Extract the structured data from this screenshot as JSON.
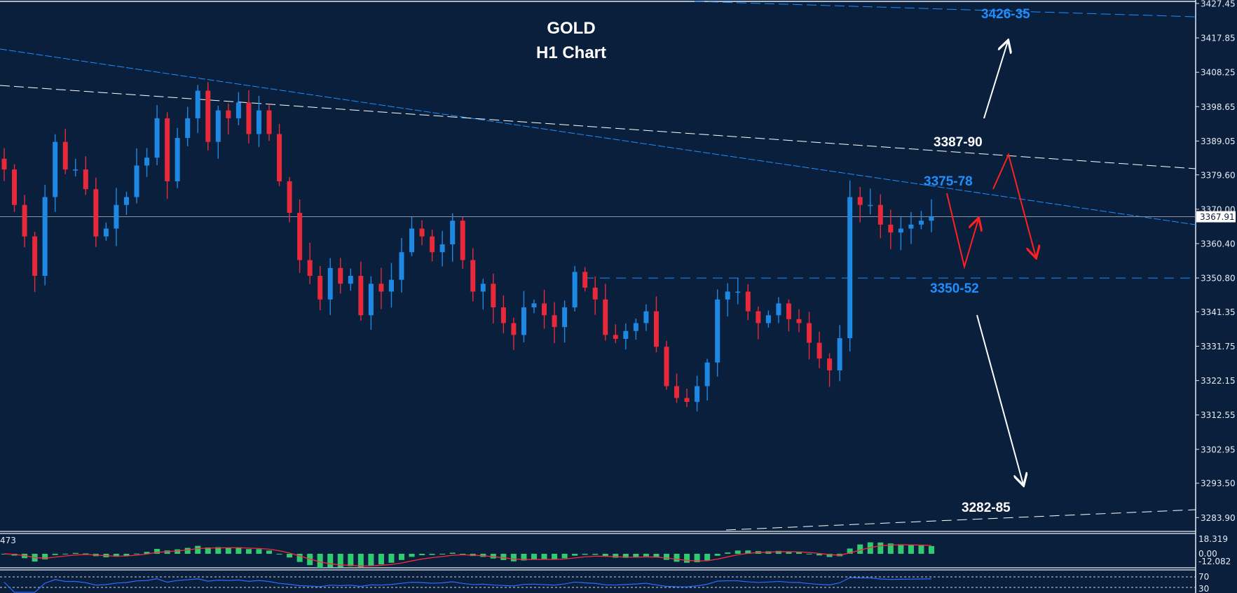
{
  "chart_data": {
    "type": "candlestick",
    "title": "GOLD",
    "subtitle": "H1 Chart",
    "ylim": [
      3281.5,
      3428.4
    ],
    "y_ticks": [
      "3427.45",
      "3417.85",
      "3408.25",
      "3398.65",
      "3389.05",
      "3379.60",
      "3370.00",
      "3360.40",
      "3350.80",
      "3341.35",
      "3331.75",
      "3322.15",
      "3312.55",
      "3302.95",
      "3293.50",
      "3283.90"
    ],
    "current_price": "3367.91",
    "closes": [
      3381.1,
      3371.2,
      3362.4,
      3351.4,
      3373.4,
      3388.8,
      3381.1,
      3381.1,
      3375.6,
      3362.4,
      3364.6,
      3371.2,
      3373.4,
      3382.2,
      3384.4,
      3395.4,
      3377.8,
      3389.9,
      3395.4,
      3403.1,
      3388.8,
      3397.6,
      3395.4,
      3399.8,
      3391.0,
      3397.6,
      3391.0,
      3377.8,
      3369.0,
      3355.8,
      3351.4,
      3344.8,
      3353.6,
      3349.2,
      3351.4,
      3340.4,
      3349.2,
      3347.0,
      3350.3,
      3358.0,
      3364.6,
      3362.4,
      3358.0,
      3360.2,
      3366.8,
      3355.8,
      3347.0,
      3349.2,
      3342.6,
      3338.2,
      3334.9,
      3342.6,
      3343.7,
      3340.4,
      3337.1,
      3342.6,
      3352.5,
      3348.1,
      3344.8,
      3334.9,
      3333.8,
      3336.0,
      3338.2,
      3341.5,
      3331.6,
      3320.6,
      3317.3,
      3316.2,
      3320.6,
      3327.2,
      3344.8,
      3347.0,
      3347.0,
      3341.5,
      3338.2,
      3340.4,
      3343.7,
      3339.3,
      3338.2,
      3332.7,
      3328.3,
      3325.0,
      3334.0,
      3373.4,
      3371.2,
      3371.2,
      3365.7,
      3363.5,
      3364.6,
      3365.7,
      3366.8,
      3367.9
    ],
    "levels": [
      {
        "label": "3426-35",
        "color": "#1e8fff"
      },
      {
        "label": "3387-90",
        "color": "#ffffff"
      },
      {
        "label": "3375-78",
        "color": "#1e8fff"
      },
      {
        "label": "3350-52",
        "color": "#1e8fff"
      },
      {
        "label": "3282-85",
        "color": "#ffffff"
      }
    ],
    "horizontal_level": 3350.8,
    "macd": {
      "label": "473",
      "ticks": [
        "18.319",
        "0.00",
        "-12.082"
      ]
    },
    "rsi": {
      "ticks": [
        "70",
        "30"
      ]
    },
    "colors": {
      "background": "#0a1f3b",
      "bull": "#1e88e5",
      "bear": "#e8293a",
      "macd_hist": "#2ecc71",
      "macd_signal": "#ff2a3a",
      "rsi_line": "#2f6bff",
      "arrows": "#ffffff",
      "scenario": "#ff2020"
    }
  }
}
